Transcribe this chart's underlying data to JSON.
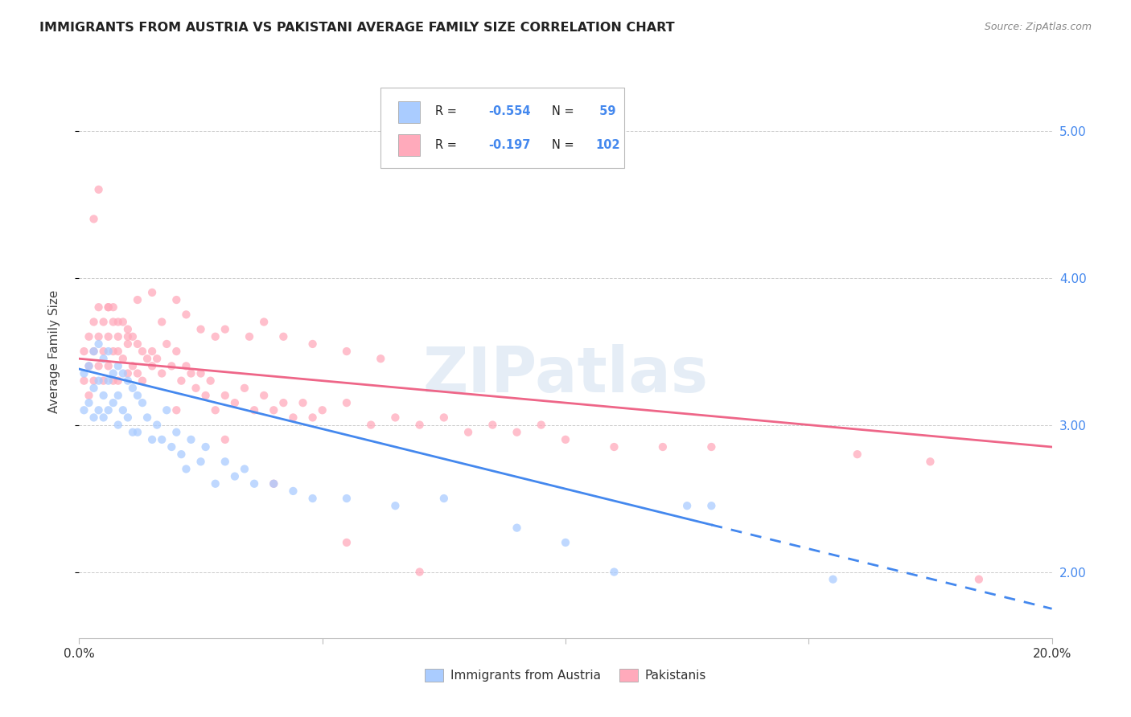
{
  "title": "IMMIGRANTS FROM AUSTRIA VS PAKISTANI AVERAGE FAMILY SIZE CORRELATION CHART",
  "source_text": "Source: ZipAtlas.com",
  "ylabel": "Average Family Size",
  "xlim": [
    0.0,
    0.2
  ],
  "ylim": [
    1.55,
    5.45
  ],
  "yticks": [
    2.0,
    3.0,
    4.0,
    5.0
  ],
  "xticks": [
    0.0,
    0.05,
    0.1,
    0.15,
    0.2
  ],
  "xticklabels": [
    "0.0%",
    "",
    "",
    "",
    "20.0%"
  ],
  "right_ytick_color": "#4488ee",
  "color_austria": "#aaccff",
  "color_pakistan": "#ffaabb",
  "line_color_austria": "#4488ee",
  "line_color_pakistan": "#ee6688",
  "scatter_alpha": 0.75,
  "scatter_size": 55,
  "watermark_text": "ZIPatlas",
  "watermark_color": "#99bbdd",
  "watermark_alpha": 0.25,
  "austria_x": [
    0.001,
    0.001,
    0.002,
    0.002,
    0.003,
    0.003,
    0.003,
    0.004,
    0.004,
    0.004,
    0.005,
    0.005,
    0.005,
    0.006,
    0.006,
    0.006,
    0.007,
    0.007,
    0.008,
    0.008,
    0.008,
    0.009,
    0.009,
    0.01,
    0.01,
    0.011,
    0.011,
    0.012,
    0.012,
    0.013,
    0.014,
    0.015,
    0.016,
    0.017,
    0.018,
    0.019,
    0.02,
    0.021,
    0.022,
    0.023,
    0.025,
    0.026,
    0.028,
    0.03,
    0.032,
    0.034,
    0.036,
    0.04,
    0.044,
    0.048,
    0.055,
    0.065,
    0.075,
    0.09,
    0.1,
    0.11,
    0.125,
    0.13,
    0.155
  ],
  "austria_y": [
    3.35,
    3.1,
    3.4,
    3.15,
    3.5,
    3.25,
    3.05,
    3.55,
    3.3,
    3.1,
    3.45,
    3.2,
    3.05,
    3.5,
    3.3,
    3.1,
    3.35,
    3.15,
    3.4,
    3.2,
    3.0,
    3.35,
    3.1,
    3.3,
    3.05,
    3.25,
    2.95,
    3.2,
    2.95,
    3.15,
    3.05,
    2.9,
    3.0,
    2.9,
    3.1,
    2.85,
    2.95,
    2.8,
    2.7,
    2.9,
    2.75,
    2.85,
    2.6,
    2.75,
    2.65,
    2.7,
    2.6,
    2.6,
    2.55,
    2.5,
    2.5,
    2.45,
    2.5,
    2.3,
    2.2,
    2.0,
    2.45,
    2.45,
    1.95
  ],
  "pakistan_x": [
    0.001,
    0.001,
    0.002,
    0.002,
    0.002,
    0.003,
    0.003,
    0.003,
    0.004,
    0.004,
    0.004,
    0.005,
    0.005,
    0.005,
    0.006,
    0.006,
    0.006,
    0.007,
    0.007,
    0.007,
    0.008,
    0.008,
    0.008,
    0.009,
    0.009,
    0.01,
    0.01,
    0.011,
    0.011,
    0.012,
    0.012,
    0.013,
    0.013,
    0.014,
    0.015,
    0.016,
    0.017,
    0.018,
    0.019,
    0.02,
    0.021,
    0.022,
    0.023,
    0.024,
    0.025,
    0.026,
    0.027,
    0.028,
    0.03,
    0.032,
    0.034,
    0.036,
    0.038,
    0.04,
    0.042,
    0.044,
    0.046,
    0.048,
    0.05,
    0.055,
    0.06,
    0.065,
    0.07,
    0.075,
    0.08,
    0.085,
    0.09,
    0.095,
    0.1,
    0.11,
    0.12,
    0.13,
    0.16,
    0.175,
    0.003,
    0.006,
    0.008,
    0.01,
    0.012,
    0.015,
    0.017,
    0.02,
    0.022,
    0.025,
    0.028,
    0.03,
    0.035,
    0.038,
    0.042,
    0.048,
    0.055,
    0.062,
    0.004,
    0.007,
    0.01,
    0.015,
    0.02,
    0.03,
    0.04,
    0.055,
    0.07,
    0.185
  ],
  "pakistan_y": [
    3.5,
    3.3,
    3.6,
    3.4,
    3.2,
    3.7,
    3.5,
    3.3,
    3.8,
    3.6,
    3.4,
    3.7,
    3.5,
    3.3,
    3.8,
    3.6,
    3.4,
    3.7,
    3.5,
    3.3,
    3.6,
    3.5,
    3.3,
    3.7,
    3.45,
    3.55,
    3.35,
    3.6,
    3.4,
    3.55,
    3.35,
    3.5,
    3.3,
    3.45,
    3.5,
    3.45,
    3.35,
    3.55,
    3.4,
    3.5,
    3.3,
    3.4,
    3.35,
    3.25,
    3.35,
    3.2,
    3.3,
    3.1,
    3.2,
    3.15,
    3.25,
    3.1,
    3.2,
    3.1,
    3.15,
    3.05,
    3.15,
    3.05,
    3.1,
    3.15,
    3.0,
    3.05,
    3.0,
    3.05,
    2.95,
    3.0,
    2.95,
    3.0,
    2.9,
    2.85,
    2.85,
    2.85,
    2.8,
    2.75,
    4.4,
    3.8,
    3.7,
    3.65,
    3.85,
    3.9,
    3.7,
    3.85,
    3.75,
    3.65,
    3.6,
    3.65,
    3.6,
    3.7,
    3.6,
    3.55,
    3.5,
    3.45,
    4.6,
    3.8,
    3.6,
    3.4,
    3.1,
    2.9,
    2.6,
    2.2,
    2.0,
    1.95
  ]
}
